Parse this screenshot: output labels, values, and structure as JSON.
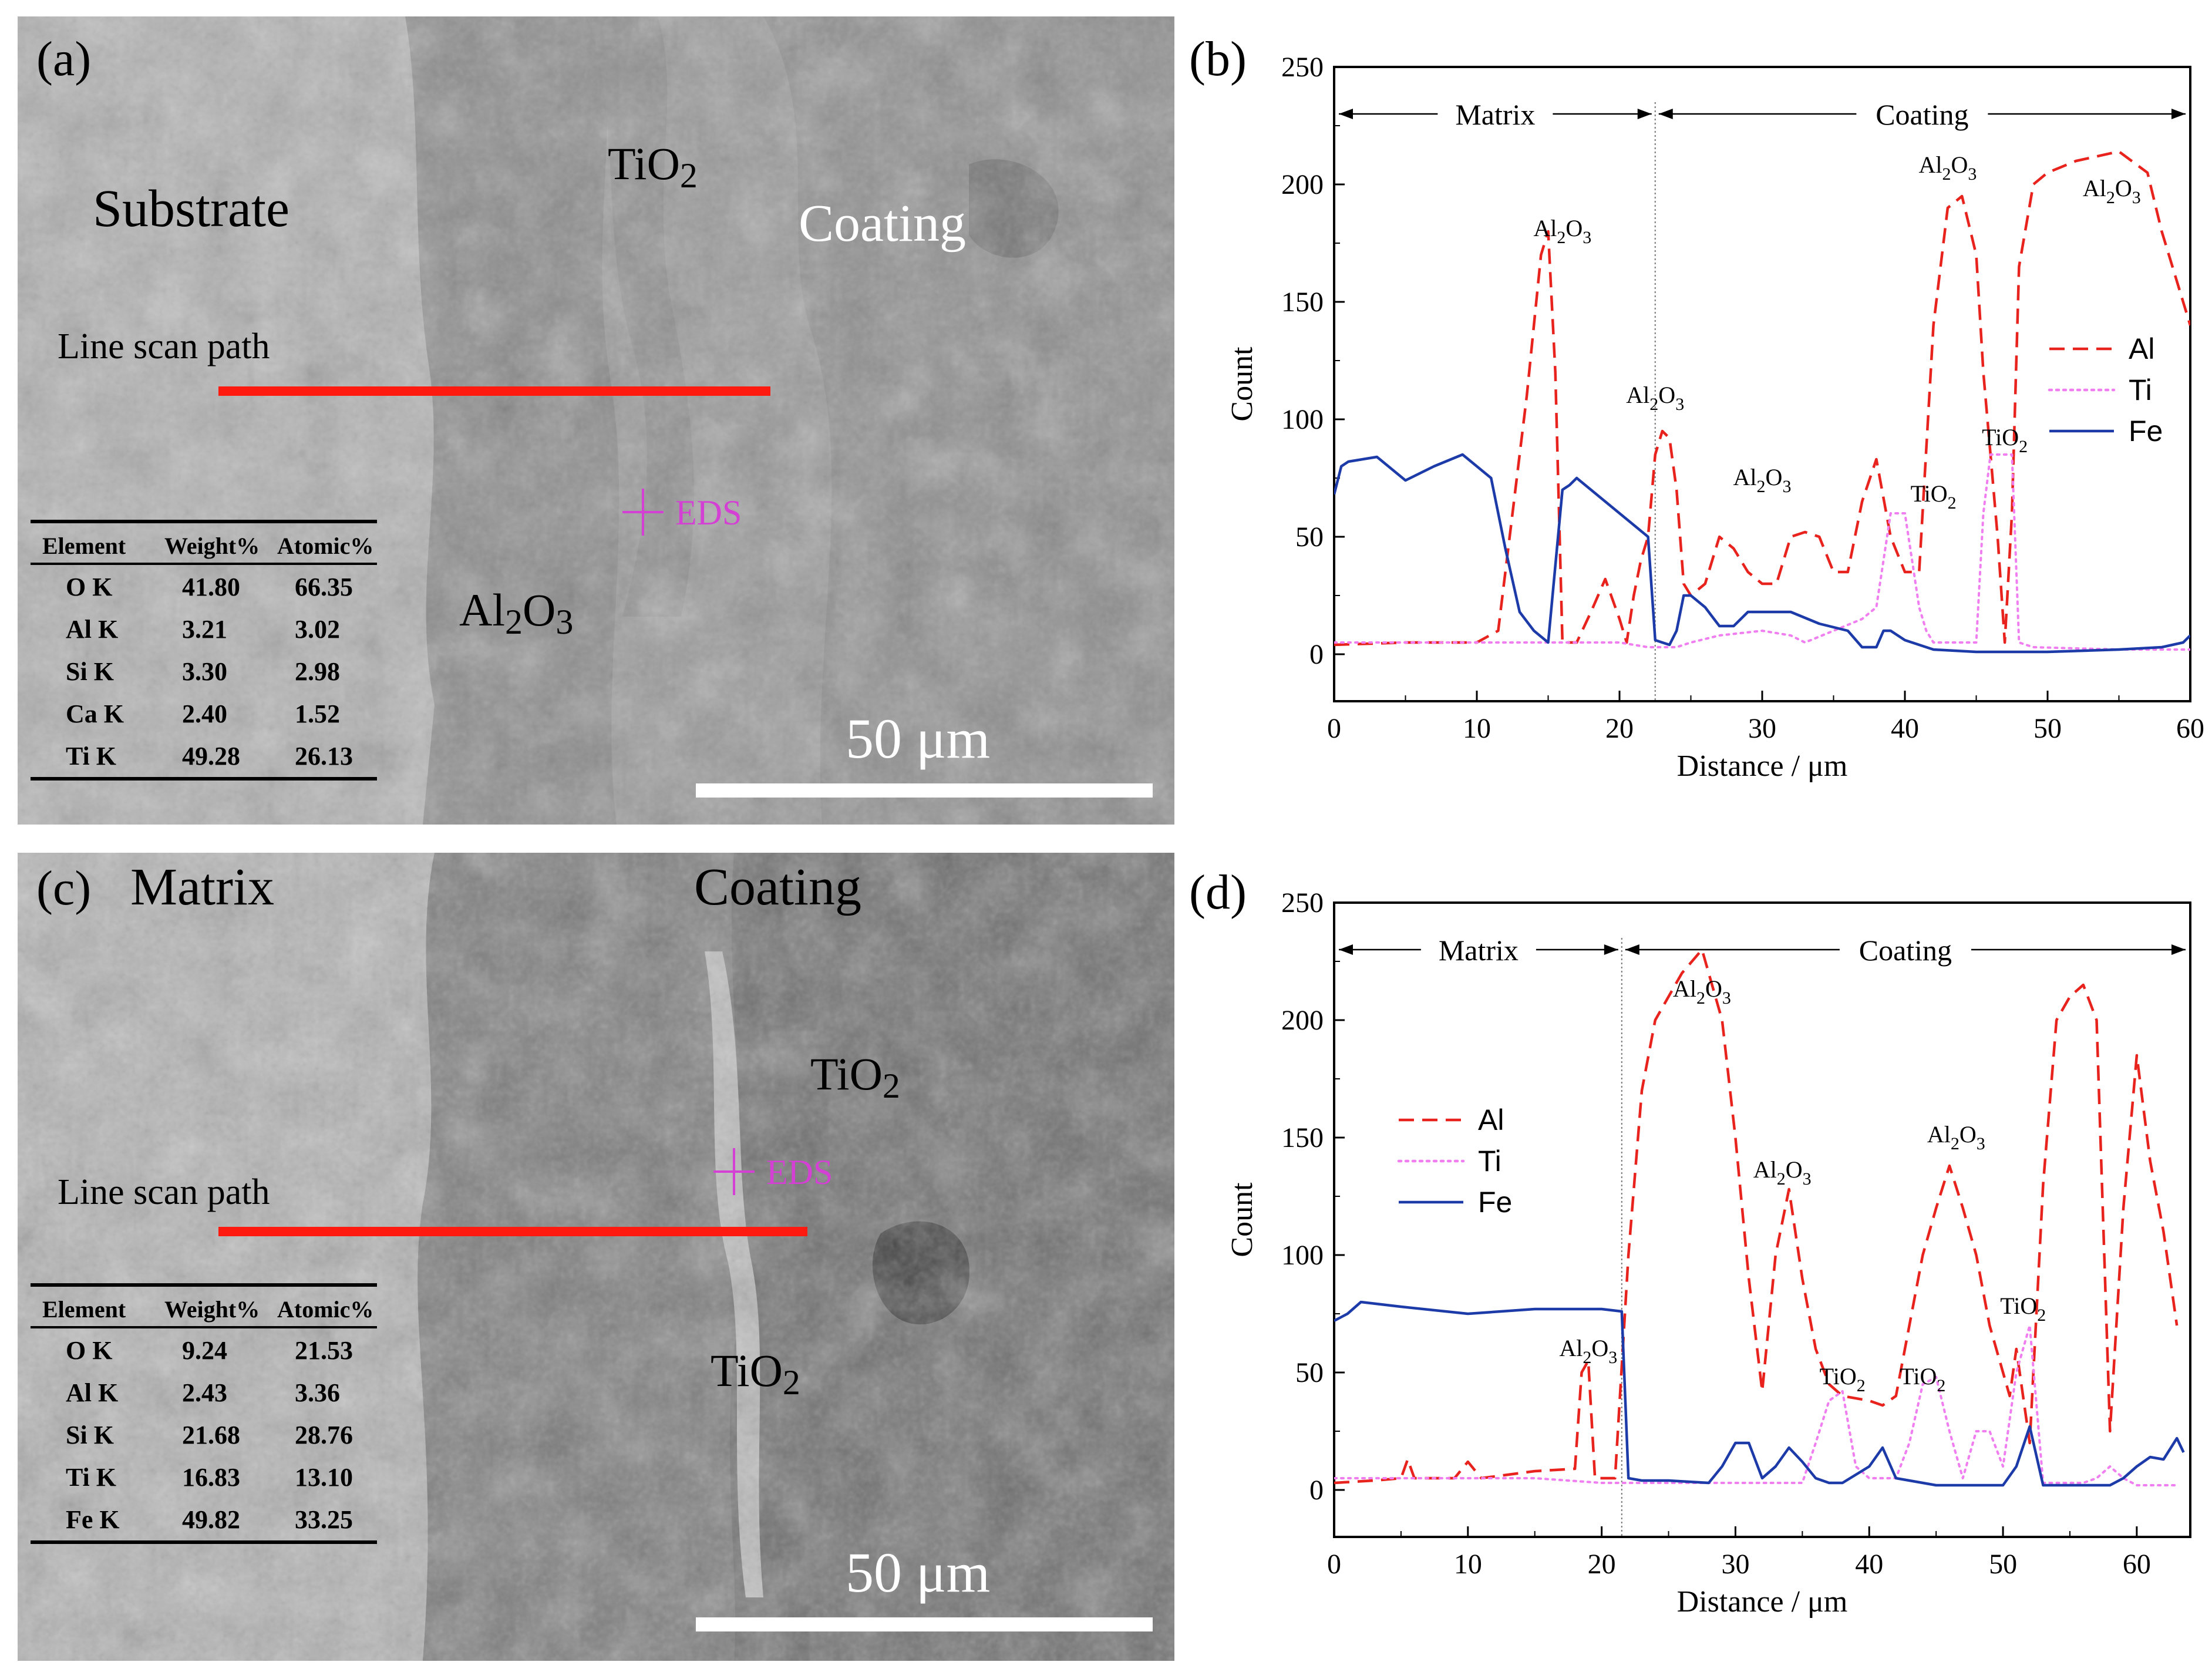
{
  "figure": {
    "colors": {
      "al": "#e8221d",
      "ti": "#f07ef0",
      "fe": "#1c3ba8",
      "scan": "#ff1a10",
      "eds": "#d43fd4",
      "divider": "#777777"
    },
    "panel_a": {
      "label": "(a)",
      "substrate": "Substrate",
      "tio2": "TiO",
      "tio2_sub": "2",
      "coating": "Coating",
      "line_scan": "Line scan path",
      "eds": "EDS",
      "al2o3": "Al",
      "al2o3_sub1": "2",
      "al2o3_o": "O",
      "al2o3_sub2": "3",
      "scale": "50 μm",
      "table": {
        "headers": [
          "Element",
          "Weight%",
          "Atomic%"
        ],
        "rows": [
          [
            "O K",
            "41.80",
            "66.35"
          ],
          [
            "Al K",
            "3.21",
            "3.02"
          ],
          [
            "Si K",
            "3.30",
            "2.98"
          ],
          [
            "Ca K",
            "2.40",
            "1.52"
          ],
          [
            "Ti K",
            "49.28",
            "26.13"
          ]
        ]
      }
    },
    "panel_c": {
      "label": "(c)",
      "matrix": "Matrix",
      "coating": "Coating",
      "tio2": "TiO",
      "tio2_sub": "2",
      "line_scan": "Line scan path",
      "eds": "EDS",
      "scale": "50 μm",
      "table": {
        "headers": [
          "Element",
          "Weight%",
          "Atomic%"
        ],
        "rows": [
          [
            "O K",
            "9.24",
            "21.53"
          ],
          [
            "Al K",
            "2.43",
            "3.36"
          ],
          [
            "Si K",
            "21.68",
            "28.76"
          ],
          [
            "Ti K",
            "16.83",
            "13.10"
          ],
          [
            "Fe K",
            "49.82",
            "33.25"
          ]
        ]
      }
    }
  },
  "chart_data": [
    {
      "type": "line",
      "panel": "(b)",
      "xlabel": "Distance / μm",
      "ylabel": "Count",
      "xlim": [
        0,
        60
      ],
      "ylim": [
        -20,
        250
      ],
      "xticks": [
        0,
        10,
        20,
        30,
        40,
        50,
        60
      ],
      "yticks": [
        0,
        50,
        100,
        150,
        200,
        250
      ],
      "legend": "right",
      "divider_x": 22.5,
      "region_labels": {
        "left": "Matrix",
        "right": "Coating"
      },
      "series": [
        {
          "name": "Al",
          "style": "dashed",
          "x": [
            0,
            5,
            10,
            11.5,
            12.5,
            13.5,
            14.5,
            15,
            15.5,
            16,
            17,
            18,
            19,
            20,
            20.5,
            21,
            21.5,
            22,
            22.5,
            23,
            23.5,
            24,
            24.5,
            25,
            26,
            27,
            28,
            29,
            30,
            31,
            32,
            33,
            34,
            35,
            36,
            37,
            38,
            39,
            40,
            41,
            42,
            43,
            44,
            45,
            45.5,
            46,
            46.5,
            47,
            47.5,
            48,
            49,
            50,
            52,
            55,
            57,
            58,
            59,
            60
          ],
          "y": [
            4,
            5,
            5,
            10,
            60,
            110,
            170,
            180,
            120,
            5,
            5,
            18,
            32,
            15,
            5,
            25,
            40,
            50,
            85,
            95,
            92,
            70,
            30,
            25,
            30,
            50,
            45,
            35,
            30,
            30,
            50,
            52,
            50,
            35,
            35,
            65,
            83,
            50,
            35,
            35,
            140,
            190,
            195,
            170,
            120,
            85,
            50,
            5,
            60,
            165,
            200,
            205,
            210,
            214,
            205,
            180,
            160,
            140
          ]
        },
        {
          "name": "Ti",
          "style": "dotted",
          "x": [
            0,
            5,
            10,
            12,
            15,
            18,
            20,
            22,
            24,
            25,
            27,
            30,
            32,
            33,
            35,
            37,
            38,
            38.5,
            39,
            40,
            40.5,
            41,
            41.5,
            42,
            43,
            44,
            45,
            45.5,
            46,
            46.5,
            47,
            47.5,
            48,
            49,
            55,
            60
          ],
          "y": [
            5,
            5,
            5,
            5,
            5,
            5,
            5,
            3,
            3,
            5,
            8,
            10,
            8,
            5,
            10,
            15,
            20,
            40,
            60,
            60,
            40,
            20,
            10,
            5,
            5,
            5,
            5,
            60,
            85,
            85,
            85,
            85,
            5,
            3,
            2,
            2
          ]
        },
        {
          "name": "Fe",
          "style": "solid",
          "x": [
            0,
            0.5,
            1,
            3,
            5,
            7,
            9,
            11,
            12,
            13,
            14,
            15,
            16,
            16.5,
            17,
            18,
            19,
            20,
            21,
            22,
            22.5,
            23,
            23.5,
            24,
            24.5,
            25,
            26,
            27,
            28,
            29,
            30,
            32,
            34,
            36,
            37,
            38,
            38.5,
            39,
            40,
            42,
            45,
            50,
            55,
            58,
            59.5,
            60
          ],
          "y": [
            68,
            80,
            82,
            84,
            74,
            80,
            85,
            75,
            45,
            18,
            10,
            5,
            70,
            72,
            75,
            70,
            65,
            60,
            55,
            50,
            6,
            5,
            4,
            10,
            25,
            25,
            20,
            12,
            12,
            18,
            18,
            18,
            13,
            10,
            3,
            3,
            10,
            10,
            6,
            2,
            1,
            1,
            2,
            3,
            5,
            8
          ]
        }
      ],
      "annotations": [
        "Al₂O₃",
        "Al₂O₃",
        "Al₂O₃",
        "Al₂O₃",
        "Al₂O₃",
        "TiO₂",
        "TiO₂"
      ]
    },
    {
      "type": "line",
      "panel": "(d)",
      "xlabel": "Distance / μm",
      "ylabel": "Count",
      "xlim": [
        0,
        64
      ],
      "ylim": [
        -20,
        250
      ],
      "xticks": [
        0,
        10,
        20,
        30,
        40,
        50,
        60
      ],
      "yticks": [
        0,
        50,
        100,
        150,
        200,
        250
      ],
      "legend": "left",
      "divider_x": 21.5,
      "region_labels": {
        "left": "Matrix",
        "right": "Coating"
      },
      "series": [
        {
          "name": "Al",
          "style": "dashed",
          "x": [
            0,
            3,
            5,
            5.5,
            6,
            9,
            10,
            11,
            15,
            18,
            18.5,
            19,
            19.5,
            20,
            21,
            22,
            23,
            24,
            26,
            27.5,
            29,
            30,
            31,
            32,
            33,
            34,
            35,
            36,
            37,
            38,
            40,
            41,
            42,
            43,
            44,
            45,
            46,
            47,
            48,
            49,
            50,
            50.5,
            51,
            52,
            53,
            54,
            55,
            56,
            57,
            58,
            59,
            60,
            61,
            62,
            63
          ],
          "y": [
            3,
            4,
            5,
            13,
            5,
            5,
            12,
            5,
            8,
            9,
            50,
            55,
            5,
            5,
            5,
            100,
            170,
            200,
            220,
            230,
            200,
            150,
            90,
            42,
            100,
            128,
            90,
            60,
            45,
            40,
            38,
            36,
            40,
            70,
            100,
            120,
            138,
            120,
            100,
            70,
            50,
            40,
            60,
            20,
            130,
            200,
            210,
            215,
            200,
            25,
            120,
            185,
            140,
            110,
            70
          ]
        },
        {
          "name": "Ti",
          "style": "dotted",
          "x": [
            0,
            5,
            10,
            15,
            20,
            25,
            30,
            35,
            36,
            37,
            38,
            39,
            40,
            42,
            43,
            44,
            45,
            46,
            47,
            48,
            49,
            50,
            50.5,
            51,
            52,
            53,
            55,
            56,
            57,
            58,
            59,
            60,
            63
          ],
          "y": [
            5,
            5,
            5,
            5,
            3,
            3,
            3,
            3,
            20,
            38,
            42,
            10,
            5,
            5,
            20,
            45,
            48,
            25,
            5,
            25,
            25,
            10,
            30,
            50,
            70,
            3,
            3,
            3,
            5,
            10,
            5,
            2,
            2
          ]
        },
        {
          "name": "Fe",
          "style": "solid",
          "x": [
            0,
            1,
            2,
            5,
            10,
            15,
            20,
            21.5,
            22,
            23,
            25,
            28,
            29,
            30,
            31,
            32,
            33,
            34,
            35,
            36,
            37,
            38,
            40,
            41,
            42,
            45,
            50,
            51,
            52,
            53,
            55,
            58,
            59,
            60,
            61,
            62,
            63,
            63.5
          ],
          "y": [
            72,
            75,
            80,
            78,
            75,
            77,
            77,
            76,
            5,
            4,
            4,
            3,
            10,
            20,
            20,
            5,
            10,
            18,
            12,
            5,
            3,
            3,
            10,
            18,
            5,
            2,
            2,
            10,
            27,
            2,
            2,
            2,
            5,
            10,
            14,
            13,
            22,
            16
          ]
        }
      ],
      "annotations": [
        "Al₂O₃",
        "Al₂O₃",
        "Al₂O₃",
        "Al₂O₃",
        "TiO₂",
        "TiO₂",
        "TiO₂"
      ]
    }
  ]
}
